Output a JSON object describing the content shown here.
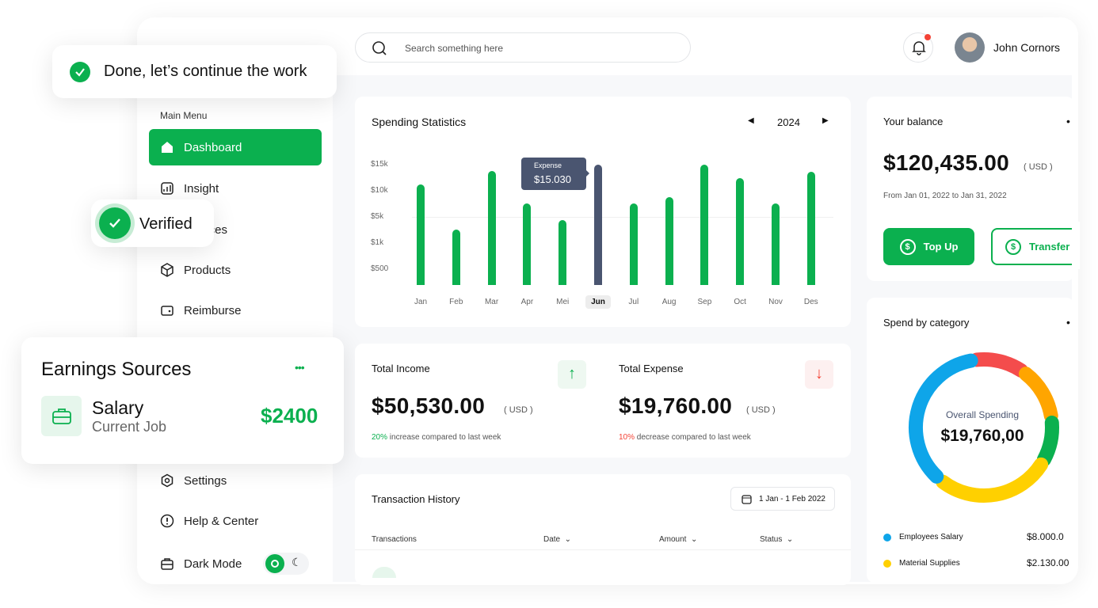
{
  "header": {
    "search_placeholder": "Search something here",
    "user_name": "John Cornors",
    "notification_dot_color": "#f44336"
  },
  "sidebar": {
    "section": "Main Menu",
    "items": [
      {
        "label": "Dashboard",
        "icon": "home-icon",
        "active": true
      },
      {
        "label": "Insight",
        "icon": "chart-icon"
      },
      {
        "label": "Invoices",
        "icon": "invoice-icon"
      },
      {
        "label": "Products",
        "icon": "box-icon"
      },
      {
        "label": "Reimburse",
        "icon": "wallet-icon"
      },
      {
        "label": "Settings",
        "icon": "gear-icon"
      },
      {
        "label": "Help & Center",
        "icon": "info-icon"
      },
      {
        "label": "Dark Mode",
        "icon": "briefcase-icon"
      }
    ]
  },
  "toasts": {
    "done": "Done, let’s continue the work",
    "verified": "Verified"
  },
  "earnings": {
    "title": "Earnings Sources",
    "more": "•••",
    "item_title": "Salary",
    "item_subtitle": "Current Job",
    "item_amount": "$2400"
  },
  "spending": {
    "title": "Spending Statistics",
    "year": "2024",
    "tooltip_label": "Expense",
    "tooltip_value": "$15.030",
    "highlight": "Jun"
  },
  "chart_data": {
    "type": "bar",
    "title": "Spending Statistics",
    "categories": [
      "Jan",
      "Feb",
      "Mar",
      "Apr",
      "Mei",
      "Jun",
      "Jul",
      "Aug",
      "Sep",
      "Oct",
      "Nov",
      "Des"
    ],
    "values": [
      11200,
      3100,
      13800,
      7600,
      4500,
      15030,
      7600,
      8800,
      15000,
      12400,
      7600,
      13600
    ],
    "yticks": [
      "$500",
      "$1k",
      "$5k",
      "$10k",
      "$15k"
    ],
    "ytick_values": [
      500,
      1000,
      5000,
      10000,
      15000
    ],
    "colors": {
      "bar": "#0bb04f",
      "highlight": "#4a5570"
    }
  },
  "income": {
    "title": "Total Income",
    "amount": "$50,530.00",
    "currency": "( USD )",
    "pct": "20%",
    "note": " increase compared to last week",
    "color": "#0bb04f"
  },
  "expense": {
    "title": "Total Expense",
    "amount": "$19,760.00",
    "currency": "( USD )",
    "pct": "10%",
    "note": " decrease compared to last week",
    "color": "#f44336"
  },
  "transactions": {
    "title": "Transaction History",
    "date_range": "1 Jan - 1 Feb 2022",
    "columns": [
      "Transactions",
      "Date",
      "Amount",
      "Status"
    ]
  },
  "balance": {
    "title": "Your balance",
    "amount": "$120,435.00",
    "currency": "( USD )",
    "period": "From Jan 01, 2022 to Jan 31, 2022",
    "topup": "Top Up",
    "transfer": "Transfer"
  },
  "category": {
    "title": "Spend by category",
    "center_label": "Overall Spending",
    "center_value": "$19,760,00",
    "segments": [
      {
        "color": "#f44c4c"
      },
      {
        "color": "#ffa500"
      },
      {
        "color": "#0bb04f"
      },
      {
        "color": "#ffd000"
      },
      {
        "color": "#0ea5e9"
      }
    ],
    "legend": [
      {
        "label": "Employees Salary",
        "value": "$8.000.0",
        "color": "#0ea5e9"
      },
      {
        "label": "Material Supplies",
        "value": "$2.130.00",
        "color": "#ffd000"
      }
    ]
  }
}
